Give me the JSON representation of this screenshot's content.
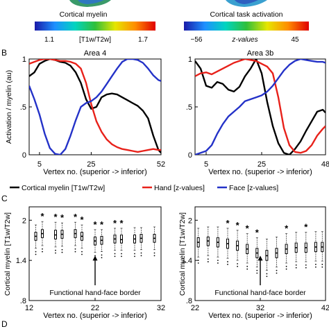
{
  "colorbars": {
    "myelin": {
      "title": "Cortical myelin",
      "min_label": "1.1",
      "unit_label": "[T1w/T2w]",
      "max_label": "1.7",
      "stops": [
        "#1a1aa8",
        "#1e90ff",
        "#00d4c0",
        "#2fbf3a",
        "#e6e600",
        "#ff8c00",
        "#e00000"
      ]
    },
    "task": {
      "title": "Cortical task activation",
      "min_label": "−56",
      "unit_label": "z-values",
      "max_label": "45",
      "stops": [
        "#1a1aa8",
        "#1e90ff",
        "#00d4c0",
        "#2fbf3a",
        "#e6e600",
        "#ff8c00",
        "#e00000"
      ]
    }
  },
  "panel_labels": {
    "b": "B",
    "c": "C",
    "d": "D"
  },
  "legend": {
    "items": [
      {
        "label": "Cortical myelin [T1w/T2w]",
        "color": "#000000"
      },
      {
        "label": "Hand [z-values]",
        "color": "#e8211a"
      },
      {
        "label": "Face [z-values]",
        "color": "#2432c8"
      }
    ]
  },
  "chart_data": [
    {
      "type": "line",
      "title": "Area 4",
      "xlabel": "Vertex no. (superior -> inferior)",
      "ylabel": "Activation / myelin (au)",
      "xlim": [
        1,
        52
      ],
      "ylim": [
        0,
        1
      ],
      "xticks": [
        5,
        25,
        52
      ],
      "yticks": [
        {
          "v": 0,
          "label": "0"
        },
        {
          "v": 0.5,
          "label": ".5"
        },
        {
          "v": 1,
          "label": "1"
        }
      ],
      "series": [
        {
          "name": "Cortical myelin [T1w/T2w]",
          "color": "#000000",
          "x": [
            1,
            3,
            5,
            7,
            9,
            11,
            13,
            15,
            17,
            19,
            21,
            23,
            25,
            27,
            29,
            31,
            33,
            35,
            37,
            39,
            41,
            43,
            45,
            47,
            49,
            51,
            52
          ],
          "y": [
            0.82,
            0.86,
            0.95,
            0.98,
            1.0,
            0.99,
            0.97,
            0.96,
            0.93,
            0.86,
            0.75,
            0.58,
            0.48,
            0.5,
            0.6,
            0.63,
            0.64,
            0.63,
            0.6,
            0.57,
            0.54,
            0.51,
            0.46,
            0.38,
            0.2,
            0.05,
            0.02
          ]
        },
        {
          "name": "Hand [z-values]",
          "color": "#e8211a",
          "x": [
            1,
            3,
            5,
            7,
            9,
            11,
            13,
            15,
            17,
            19,
            21,
            23,
            25,
            27,
            29,
            31,
            33,
            35,
            37,
            39,
            41,
            43,
            45,
            47,
            49,
            51,
            52
          ],
          "y": [
            0.95,
            0.97,
            0.99,
            1.0,
            1.0,
            0.99,
            0.98,
            0.98,
            0.97,
            0.95,
            0.9,
            0.75,
            0.53,
            0.35,
            0.24,
            0.16,
            0.11,
            0.08,
            0.06,
            0.05,
            0.04,
            0.03,
            0.04,
            0.05,
            0.06,
            0.05,
            0.05
          ]
        },
        {
          "name": "Face [z-values]",
          "color": "#2432c8",
          "x": [
            1,
            3,
            5,
            7,
            9,
            11,
            13,
            15,
            17,
            19,
            21,
            23,
            25,
            27,
            29,
            31,
            33,
            35,
            37,
            39,
            41,
            43,
            45,
            47,
            49,
            51,
            52
          ],
          "y": [
            0.72,
            0.58,
            0.42,
            0.22,
            0.07,
            0.01,
            0.0,
            0.06,
            0.2,
            0.36,
            0.5,
            0.54,
            0.56,
            0.6,
            0.66,
            0.74,
            0.82,
            0.9,
            0.97,
            1.0,
            1.0,
            0.99,
            0.96,
            0.9,
            0.83,
            0.78,
            0.77
          ]
        }
      ]
    },
    {
      "type": "line",
      "title": "Area 3b",
      "xlabel": "Vertex no. (superior -> inferior)",
      "ylabel": "",
      "xlim": [
        1,
        48
      ],
      "ylim": [
        0,
        1
      ],
      "xticks": [
        5,
        25,
        48
      ],
      "yticks": [
        {
          "v": 0,
          "label": "0"
        },
        {
          "v": 0.5,
          "label": ".5"
        },
        {
          "v": 1,
          "label": "1"
        }
      ],
      "series": [
        {
          "name": "Cortical myelin [T1w/T2w]",
          "color": "#000000",
          "x": [
            1,
            3,
            5,
            7,
            9,
            11,
            13,
            15,
            17,
            19,
            21,
            23,
            25,
            27,
            29,
            31,
            33,
            35,
            37,
            39,
            41,
            43,
            45,
            47,
            48
          ],
          "y": [
            0.98,
            0.9,
            0.72,
            0.7,
            0.76,
            0.74,
            0.68,
            0.66,
            0.71,
            0.82,
            0.9,
            1.0,
            0.85,
            0.55,
            0.3,
            0.12,
            0.02,
            0.0,
            0.06,
            0.14,
            0.25,
            0.35,
            0.45,
            0.47,
            0.44
          ]
        },
        {
          "name": "Hand [z-values]",
          "color": "#e8211a",
          "x": [
            1,
            3,
            5,
            7,
            9,
            11,
            13,
            15,
            17,
            19,
            21,
            23,
            25,
            27,
            29,
            31,
            33,
            35,
            37,
            39,
            41,
            43,
            45,
            47,
            48
          ],
          "y": [
            0.82,
            0.85,
            0.86,
            0.84,
            0.87,
            0.9,
            0.93,
            0.96,
            0.98,
            1.0,
            0.99,
            0.98,
            0.95,
            0.92,
            0.85,
            0.6,
            0.28,
            0.1,
            0.03,
            0.02,
            0.04,
            0.1,
            0.2,
            0.27,
            0.3
          ]
        },
        {
          "name": "Face [z-values]",
          "color": "#2432c8",
          "x": [
            1,
            3,
            5,
            7,
            9,
            11,
            13,
            15,
            17,
            19,
            21,
            23,
            25,
            27,
            29,
            31,
            33,
            35,
            37,
            39,
            41,
            43,
            45,
            47,
            48
          ],
          "y": [
            0.0,
            0.02,
            0.04,
            0.1,
            0.22,
            0.32,
            0.4,
            0.45,
            0.5,
            0.56,
            0.58,
            0.6,
            0.62,
            0.66,
            0.72,
            0.8,
            0.88,
            0.94,
            0.98,
            1.0,
            0.99,
            0.98,
            0.97,
            0.97,
            0.96
          ]
        }
      ]
    },
    {
      "type": "box",
      "title": "",
      "xlabel": "Vertex no. (superior -> inferior)",
      "ylabel": "Cortical myelin [T1w/T2w]",
      "xlim": [
        12,
        32
      ],
      "ylim": [
        0.8,
        2.2
      ],
      "xticks": [
        12,
        22,
        32
      ],
      "yticks": [
        {
          "v": 0.8,
          "label": ".8"
        },
        {
          "v": 1.4,
          "label": "1.4"
        },
        {
          "v": 2.0,
          "label": "2"
        }
      ],
      "boxes": [
        {
          "x": 13,
          "q1": 1.7,
          "median": 1.76,
          "q3": 1.82,
          "wlo": 1.58,
          "whi": 1.93,
          "star": false
        },
        {
          "x": 14,
          "q1": 1.74,
          "median": 1.8,
          "q3": 1.86,
          "wlo": 1.62,
          "whi": 1.98,
          "star": true
        },
        {
          "x": 16,
          "q1": 1.72,
          "median": 1.78,
          "q3": 1.85,
          "wlo": 1.6,
          "whi": 1.97,
          "star": true
        },
        {
          "x": 17,
          "q1": 1.73,
          "median": 1.79,
          "q3": 1.85,
          "wlo": 1.61,
          "whi": 1.96,
          "star": true
        },
        {
          "x": 19,
          "q1": 1.74,
          "median": 1.8,
          "q3": 1.86,
          "wlo": 1.62,
          "whi": 1.97,
          "star": true
        },
        {
          "x": 20,
          "q1": 1.7,
          "median": 1.76,
          "q3": 1.82,
          "wlo": 1.58,
          "whi": 1.93,
          "star": true
        },
        {
          "x": 22,
          "q1": 1.63,
          "median": 1.69,
          "q3": 1.75,
          "wlo": 1.52,
          "whi": 1.86,
          "star": true
        },
        {
          "x": 23,
          "q1": 1.64,
          "median": 1.7,
          "q3": 1.76,
          "wlo": 1.53,
          "whi": 1.86,
          "star": true
        },
        {
          "x": 25,
          "q1": 1.66,
          "median": 1.72,
          "q3": 1.78,
          "wlo": 1.55,
          "whi": 1.88,
          "star": true
        },
        {
          "x": 26,
          "q1": 1.66,
          "median": 1.71,
          "q3": 1.78,
          "wlo": 1.55,
          "whi": 1.88,
          "star": true
        },
        {
          "x": 28,
          "q1": 1.66,
          "median": 1.72,
          "q3": 1.78,
          "wlo": 1.55,
          "whi": 1.89,
          "star": false
        },
        {
          "x": 29,
          "q1": 1.67,
          "median": 1.73,
          "q3": 1.79,
          "wlo": 1.56,
          "whi": 1.89,
          "star": false
        },
        {
          "x": 31,
          "q1": 1.67,
          "median": 1.73,
          "q3": 1.79,
          "wlo": 1.56,
          "whi": 1.9,
          "star": false
        }
      ],
      "annotation": {
        "text": "Functional hand-face border",
        "x": 22
      }
    },
    {
      "type": "box",
      "title": "",
      "xlabel": "Vertex no. (superior -> inferior)",
      "ylabel": "Cortical myelin [T1w/T2w]",
      "xlim": [
        22,
        42
      ],
      "ylim": [
        0.8,
        2.2
      ],
      "xticks": [
        22,
        32,
        42
      ],
      "yticks": [
        {
          "v": 0.8,
          "label": ".8"
        },
        {
          "v": 1.4,
          "label": "1.4"
        },
        {
          "v": 2.0,
          "label": "2"
        }
      ],
      "boxes": [
        {
          "x": 22.5,
          "q1": 1.6,
          "median": 1.67,
          "q3": 1.74,
          "wlo": 1.45,
          "whi": 1.88,
          "star": false
        },
        {
          "x": 24,
          "q1": 1.62,
          "median": 1.69,
          "q3": 1.75,
          "wlo": 1.47,
          "whi": 1.9,
          "star": false
        },
        {
          "x": 25.5,
          "q1": 1.6,
          "median": 1.67,
          "q3": 1.74,
          "wlo": 1.45,
          "whi": 1.9,
          "star": false
        },
        {
          "x": 27,
          "q1": 1.58,
          "median": 1.65,
          "q3": 1.72,
          "wlo": 1.43,
          "whi": 1.88,
          "star": true
        },
        {
          "x": 28.5,
          "q1": 1.55,
          "median": 1.62,
          "q3": 1.69,
          "wlo": 1.4,
          "whi": 1.85,
          "star": true
        },
        {
          "x": 30,
          "q1": 1.5,
          "median": 1.57,
          "q3": 1.64,
          "wlo": 1.36,
          "whi": 1.8,
          "star": true
        },
        {
          "x": 31.5,
          "q1": 1.44,
          "median": 1.51,
          "q3": 1.58,
          "wlo": 1.3,
          "whi": 1.74,
          "star": true
        },
        {
          "x": 33,
          "q1": 1.4,
          "median": 1.47,
          "q3": 1.55,
          "wlo": 1.25,
          "whi": 1.72,
          "star": false
        },
        {
          "x": 34.5,
          "q1": 1.44,
          "median": 1.51,
          "q3": 1.58,
          "wlo": 1.3,
          "whi": 1.75,
          "star": false
        },
        {
          "x": 36,
          "q1": 1.5,
          "median": 1.57,
          "q3": 1.64,
          "wlo": 1.36,
          "whi": 1.8,
          "star": true
        },
        {
          "x": 37.5,
          "q1": 1.52,
          "median": 1.59,
          "q3": 1.66,
          "wlo": 1.38,
          "whi": 1.82,
          "star": false
        },
        {
          "x": 39,
          "q1": 1.52,
          "median": 1.59,
          "q3": 1.66,
          "wlo": 1.38,
          "whi": 1.82,
          "star": true
        },
        {
          "x": 40.5,
          "q1": 1.53,
          "median": 1.6,
          "q3": 1.67,
          "wlo": 1.39,
          "whi": 1.83,
          "star": false
        },
        {
          "x": 41.5,
          "q1": 1.53,
          "median": 1.6,
          "q3": 1.67,
          "wlo": 1.39,
          "whi": 1.83,
          "star": false
        }
      ],
      "annotation": {
        "text": "Functional hand-face border",
        "x": 32
      }
    }
  ]
}
